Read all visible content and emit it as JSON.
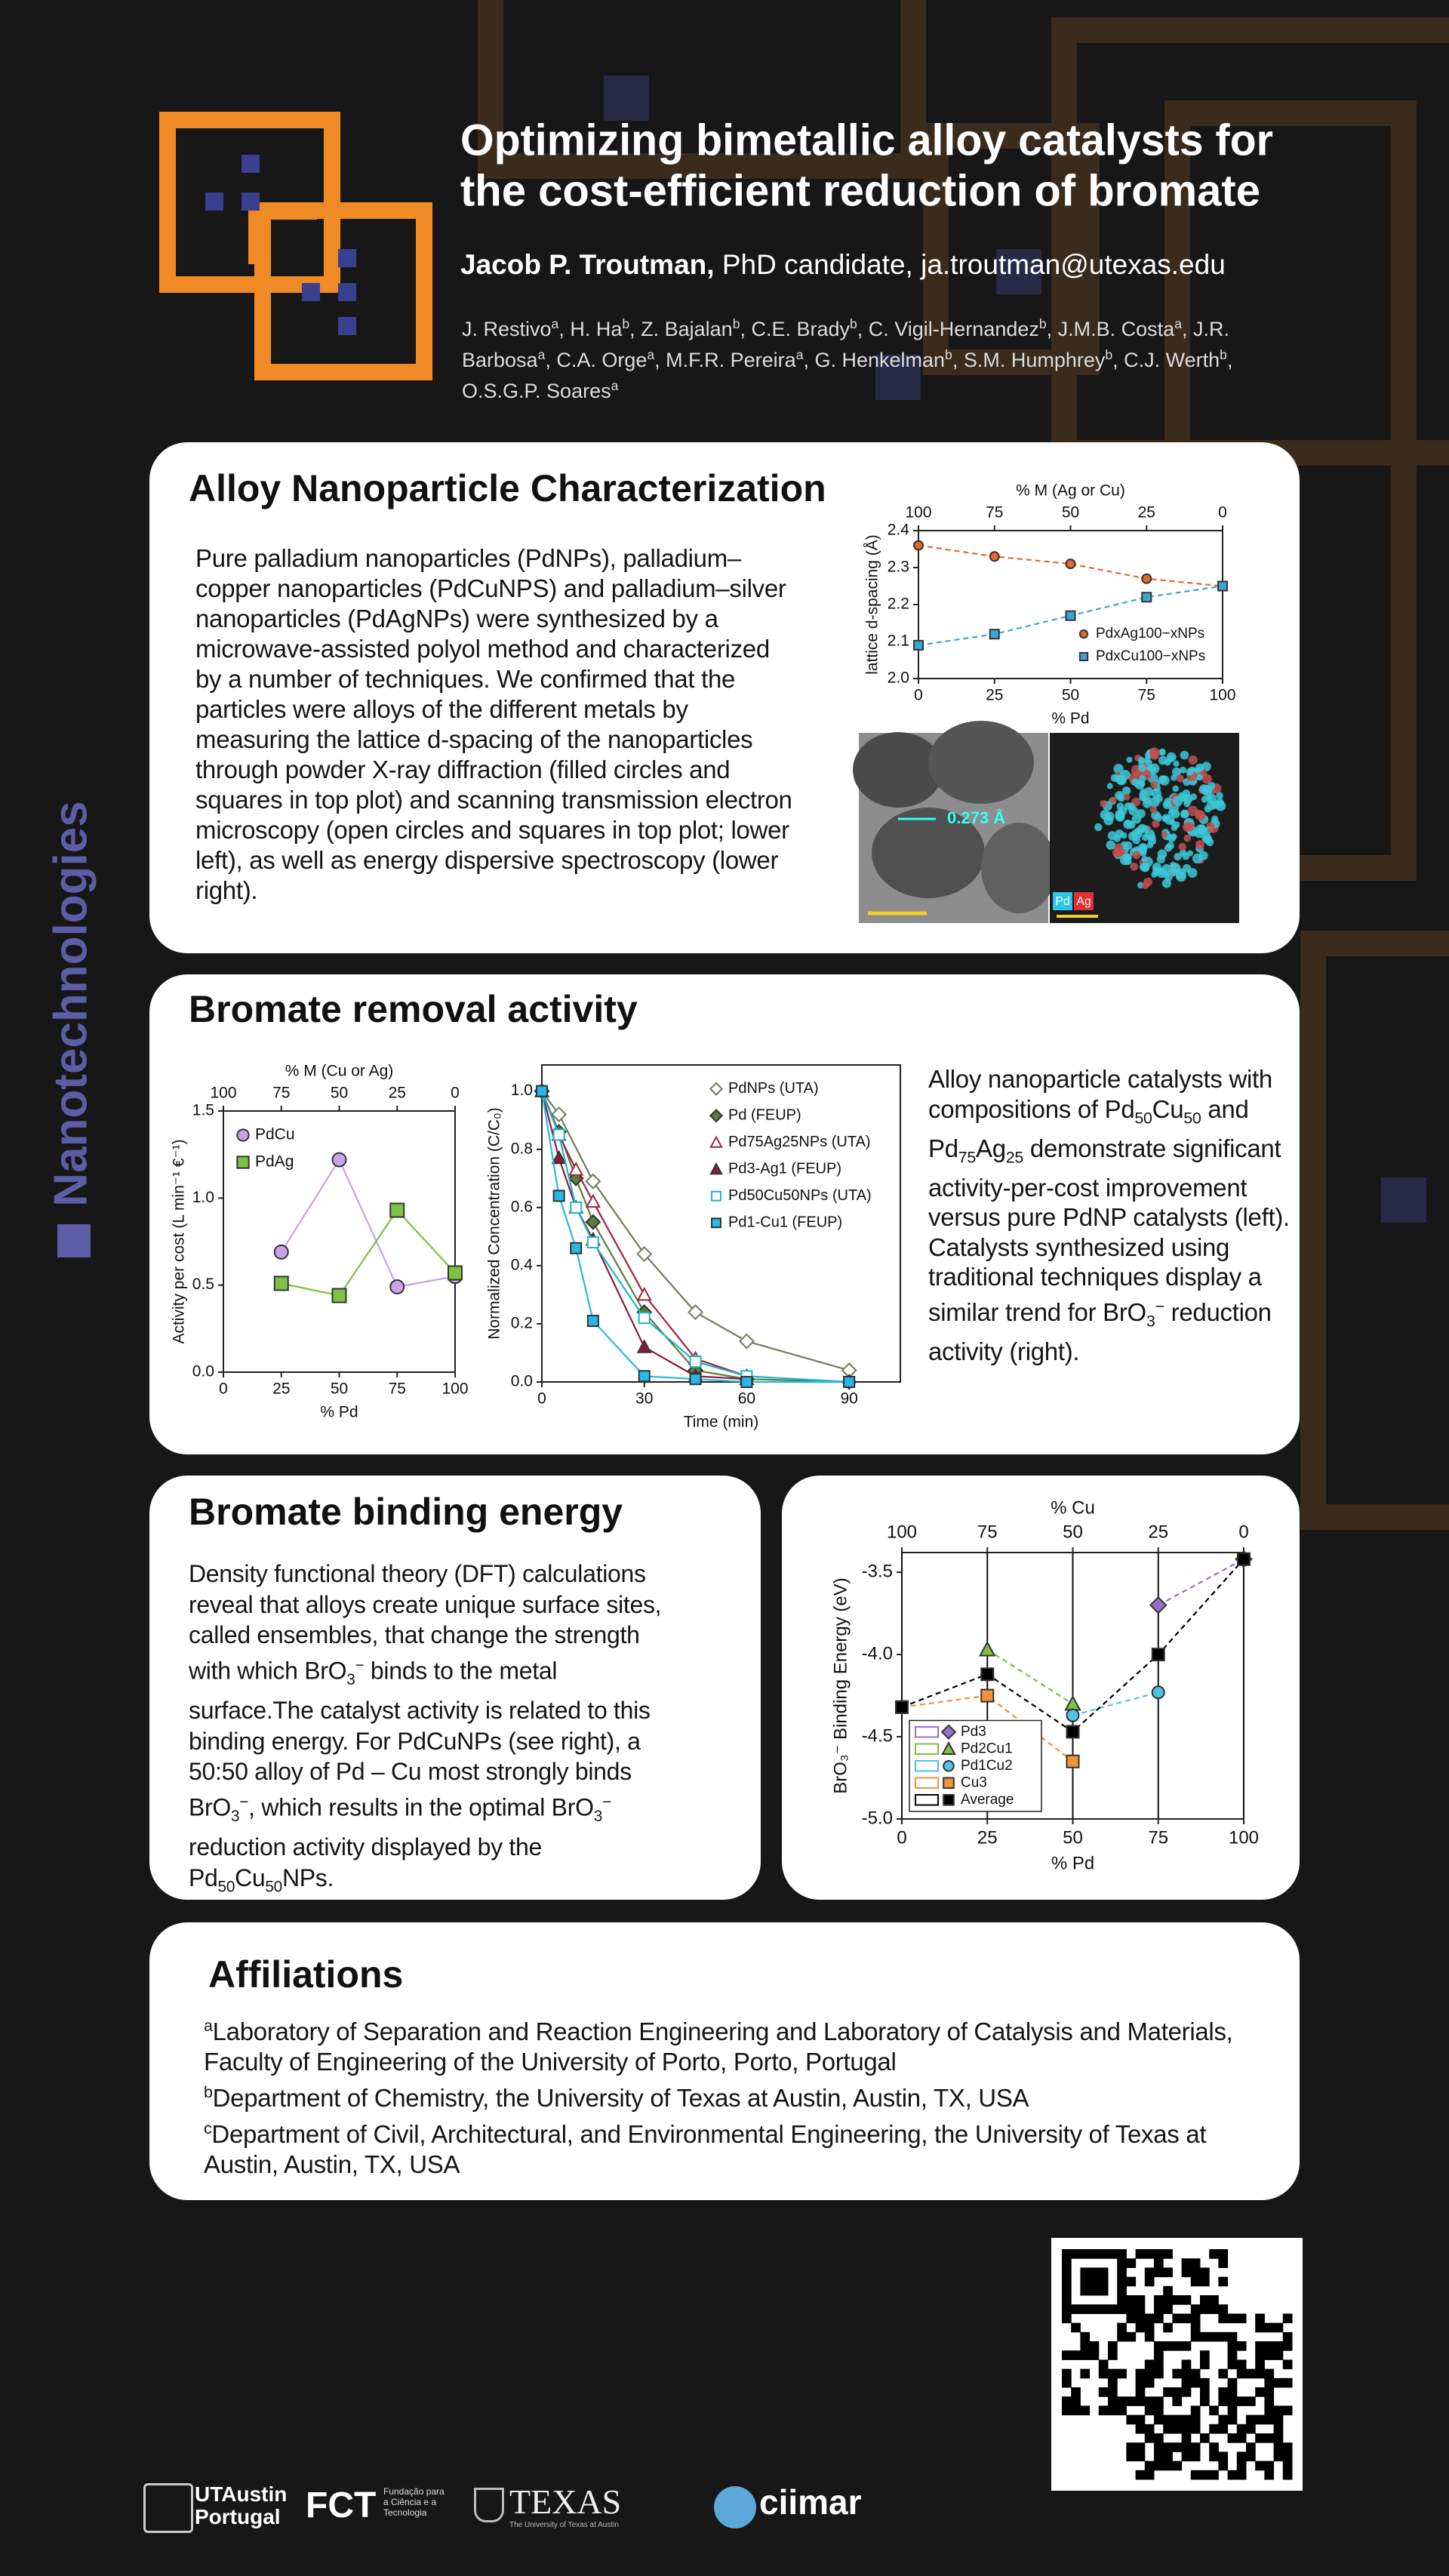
{
  "header": {
    "title": [
      "Optimizing bimetallic alloy catalysts for",
      "the cost-efficient reduction of bromate"
    ],
    "author_name": "Jacob P. Troutman,",
    "author_role": "PhD candidate,",
    "author_email": "ja.troutman@utexas.edu",
    "coauthors": [
      {
        "name": "J. Restivo",
        "aff": "a"
      },
      {
        "name": ", H. Ha",
        "aff": "b"
      },
      {
        "name": ", Z. Bajalan",
        "aff": "b"
      },
      {
        "name": ", C.E. Brady",
        "aff": "b"
      },
      {
        "name": ", C. Vigil-Hernandez",
        "aff": "b"
      },
      {
        "name": ", J.M.B. Costa",
        "aff": "a"
      },
      {
        "name": ", J.R. Barbosa",
        "aff": "a"
      },
      {
        "name": ", C.A. Orge",
        "aff": "a"
      },
      {
        "name": ", M.F.R. Pereira",
        "aff": "a"
      },
      {
        "name": ", G. Henkelman",
        "aff": "b"
      },
      {
        "name": ", S.M. Humphrey",
        "aff": "b"
      },
      {
        "name": ", C.J. Werth",
        "aff": "b"
      },
      {
        "name": ", O.S.G.P. Soares",
        "aff": "a"
      }
    ]
  },
  "side_label": "Nanotechnologies",
  "sections": [
    {
      "heading": "Alloy Nanoparticle Characterization",
      "body": "Pure palladium nanoparticles (PdNPs), palladium–copper nanoparticles (PdCuNPS) and palladium–silver nanoparticles (PdAgNPs) were synthesized by a microwave-assisted polyol method and characterized by a number of techniques. We confirmed that the particles were alloys of the different metals by measuring the lattice d-spacing of the nanoparticles through powder X-ray diffraction (filled circles and squares in top plot) and scanning transmission electron microscopy (open circles and squares in top plot; lower left), as well as energy dispersive spectroscopy (lower right).",
      "tem_label": "0.273 Å",
      "eds_labels": [
        "Pd",
        "Ag"
      ]
    },
    {
      "heading": "Bromate removal activity",
      "body": [
        "Alloy nanoparticle catalysts with compositions of Pd",
        "50",
        "Cu",
        "50",
        " and Pd",
        "75",
        "Ag",
        "25",
        " demonstrate significant activity-per-cost improvement versus pure PdNP catalysts (left). Catalysts synthesized using traditional techniques display a similar trend for BrO",
        "3",
        "−",
        " reduction activity (right)."
      ]
    },
    {
      "heading": "Bromate binding energy",
      "body": [
        "Density functional theory (DFT) calculations reveal that alloys create unique surface sites, called ensembles, that change the strength with which BrO",
        "3",
        "−",
        " binds to the metal surface.The catalyst activity is related to this binding energy. For PdCuNPs (see right), a 50:50 alloy of Pd – Cu most strongly binds BrO",
        "3",
        "−",
        ", which results in the optimal BrO",
        "3",
        "−",
        " reduction activity displayed by the Pd",
        "50",
        "Cu",
        "50",
        "NPs."
      ]
    },
    {
      "heading": "Affiliations",
      "items": [
        {
          "sup": "a",
          "text": "Laboratory of Separation and Reaction Engineering and Laboratory of Catalysis and Materials, Faculty of Engineering of the University of Porto, Porto, Portugal"
        },
        {
          "sup": "b",
          "text": "Department of Chemistry, the University of Texas at Austin, Austin, TX, USA"
        },
        {
          "sup": "c",
          "text": "Department of Civil, Architectural, and Environmental Engineering, the University of Texas at Austin, Austin, TX, USA"
        }
      ]
    }
  ],
  "chart_data": [
    {
      "type": "line",
      "xlabel": "% Pd",
      "ylabel": "lattice d-spacing (Å)",
      "x2label": "% M (Ag or Cu)",
      "x": [
        0,
        25,
        50,
        75,
        100
      ],
      "series": [
        {
          "name": "PdxAg100−xNPs",
          "color": "#e2692c",
          "marker": "circle",
          "values": [
            2.36,
            2.33,
            2.31,
            2.27,
            2.25
          ]
        },
        {
          "name": "PdxCu100−xNPs",
          "color": "#3aa6d8",
          "marker": "square",
          "values": [
            2.09,
            2.12,
            2.17,
            2.22,
            2.25
          ]
        }
      ],
      "xlim": [
        0,
        100
      ],
      "xticks": [
        0,
        25,
        50,
        75,
        100
      ],
      "x2lim": [
        100,
        0
      ],
      "x2ticks": [
        100,
        75,
        50,
        25,
        0
      ],
      "ylim": [
        2.0,
        2.4
      ],
      "yticks": [
        {
          "value": 2,
          "label": "2.0"
        },
        2.1,
        2.2,
        2.3,
        2.4
      ],
      "legend": "lower right",
      "dashed": true
    },
    {
      "type": "line",
      "xlabel": "% Pd",
      "ylabel": "Activity per cost (L min⁻¹ €⁻¹)",
      "x2label": "% M (Cu or Ag)",
      "x": [
        25,
        50,
        75,
        100
      ],
      "series": [
        {
          "name": "PdCu",
          "color": "#c9a3e6",
          "marker": "circle",
          "values": [
            0.69,
            1.22,
            0.49,
            0.55
          ]
        },
        {
          "name": "PdAg",
          "color": "#7dc242",
          "marker": "square",
          "values": [
            0.51,
            0.44,
            0.93,
            0.57
          ]
        }
      ],
      "xlim": [
        0,
        100
      ],
      "xticks": [
        0,
        25,
        50,
        75,
        100
      ],
      "x2lim": [
        100,
        0
      ],
      "x2ticks": [
        100,
        75,
        50,
        25,
        0
      ],
      "ylim": [
        0,
        1.5
      ],
      "yticks": [
        {
          "value": 0,
          "label": "0.0"
        },
        0.5,
        {
          "value": 1,
          "label": "1.0"
        },
        1.5
      ],
      "legend": "upper left",
      "dashed": false
    },
    {
      "type": "line",
      "xlabel": "Time (min)",
      "ylabel": "Normalized Concentration (C/C₀)",
      "series": [
        {
          "name": "PdNPs (UTA)",
          "color": "#6d7d5c",
          "marker": "diamond",
          "filled": false,
          "x": [
            0,
            5,
            15,
            30,
            45,
            60,
            90
          ],
          "values": [
            1,
            0.92,
            0.69,
            0.44,
            0.24,
            0.14,
            0.04
          ]
        },
        {
          "name": "Pd (FEUP)",
          "color": "#5b7d3a",
          "marker": "diamond",
          "filled": true,
          "x": [
            0,
            5,
            10,
            15,
            30,
            45,
            60,
            90
          ],
          "values": [
            1,
            0.86,
            0.7,
            0.55,
            0.24,
            0.04,
            0.01,
            0
          ]
        },
        {
          "name": "Pd75Ag25NPs (UTA)",
          "color": "#a3223e",
          "marker": "triangle",
          "filled": false,
          "x": [
            0,
            5,
            10,
            15,
            30,
            45,
            60
          ],
          "values": [
            1,
            0.85,
            0.73,
            0.62,
            0.3,
            0.08,
            0.02
          ]
        },
        {
          "name": "Pd3-Ag1 (FEUP)",
          "color": "#8b1a3a",
          "marker": "triangle",
          "filled": true,
          "x": [
            0,
            5,
            10,
            15,
            30,
            45,
            60
          ],
          "values": [
            1,
            0.77,
            0.6,
            0.49,
            0.12,
            0.02,
            0.01
          ]
        },
        {
          "name": "Pd50Cu50NPs (UTA)",
          "color": "#1fb5c9",
          "marker": "square",
          "filled": false,
          "x": [
            0,
            5,
            10,
            15,
            30,
            45,
            60,
            90
          ],
          "values": [
            1,
            0.85,
            0.6,
            0.48,
            0.22,
            0.07,
            0.02,
            0
          ]
        },
        {
          "name": "Pd1-Cu1 (FEUP)",
          "color": "#29b6e8",
          "marker": "square",
          "filled": true,
          "x": [
            0,
            5,
            10,
            15,
            30,
            45,
            60,
            90
          ],
          "values": [
            1,
            0.64,
            0.46,
            0.21,
            0.02,
            0.01,
            0,
            0
          ]
        }
      ],
      "xlim": [
        0,
        105
      ],
      "xticks": [
        0,
        30,
        60,
        90
      ],
      "ylim": [
        0,
        1.09
      ],
      "yticks": [
        {
          "value": 0,
          "label": "0.0"
        },
        0.2,
        0.4,
        0.6,
        0.8,
        {
          "value": 1,
          "label": "1.0"
        }
      ],
      "legend": "upper right",
      "dashed": false
    },
    {
      "type": "line",
      "xlabel": "% Pd",
      "ylabel": "BrO₃⁻ Binding Energy (eV)",
      "x2label": "% Cu",
      "series": [
        {
          "name": "Pd3",
          "color": "#9b6fc7",
          "marker": "diamond",
          "x": [
            75,
            100
          ],
          "values": [
            -3.7,
            -3.42
          ]
        },
        {
          "name": "Pd2Cu1",
          "color": "#7dc242",
          "marker": "triangle",
          "x": [
            25,
            50
          ],
          "values": [
            -3.97,
            -4.3
          ]
        },
        {
          "name": "Pd1Cu2",
          "color": "#4dc3e8",
          "marker": "circle",
          "x": [
            50,
            75
          ],
          "values": [
            -4.37,
            -4.23
          ]
        },
        {
          "name": "Cu3",
          "color": "#f4923a",
          "marker": "square",
          "x": [
            0,
            25,
            50
          ],
          "values": [
            -4.32,
            -4.25,
            -4.65
          ]
        },
        {
          "name": "Average",
          "color": "#000000",
          "marker": "square",
          "x": [
            0,
            25,
            50,
            75,
            100
          ],
          "values": [
            -4.32,
            -4.12,
            -4.47,
            -4.0,
            -3.42
          ]
        }
      ],
      "xlim": [
        0,
        100
      ],
      "xticks": [
        0,
        25,
        50,
        75,
        100
      ],
      "x2lim": [
        100,
        0
      ],
      "x2ticks": [
        100,
        75,
        50,
        25,
        0
      ],
      "ylim": [
        -5.0,
        -3.38
      ],
      "yticks": [
        {
          "value": -5,
          "label": "-5.0"
        },
        -4.5,
        {
          "value": -4,
          "label": "-4.0"
        },
        -3.5
      ],
      "legend": "lower left",
      "grid": "x",
      "dashed": true
    }
  ],
  "logos": {
    "utaustin": "UTAustin",
    "portugal": "Portugal",
    "fct": "FCT",
    "fct_sub": "Fundação para a Ciência e a Tecnologia",
    "texas": "TEXAS",
    "texas_sub": "The University of Texas at Austin",
    "ciimar": "ciimar"
  }
}
